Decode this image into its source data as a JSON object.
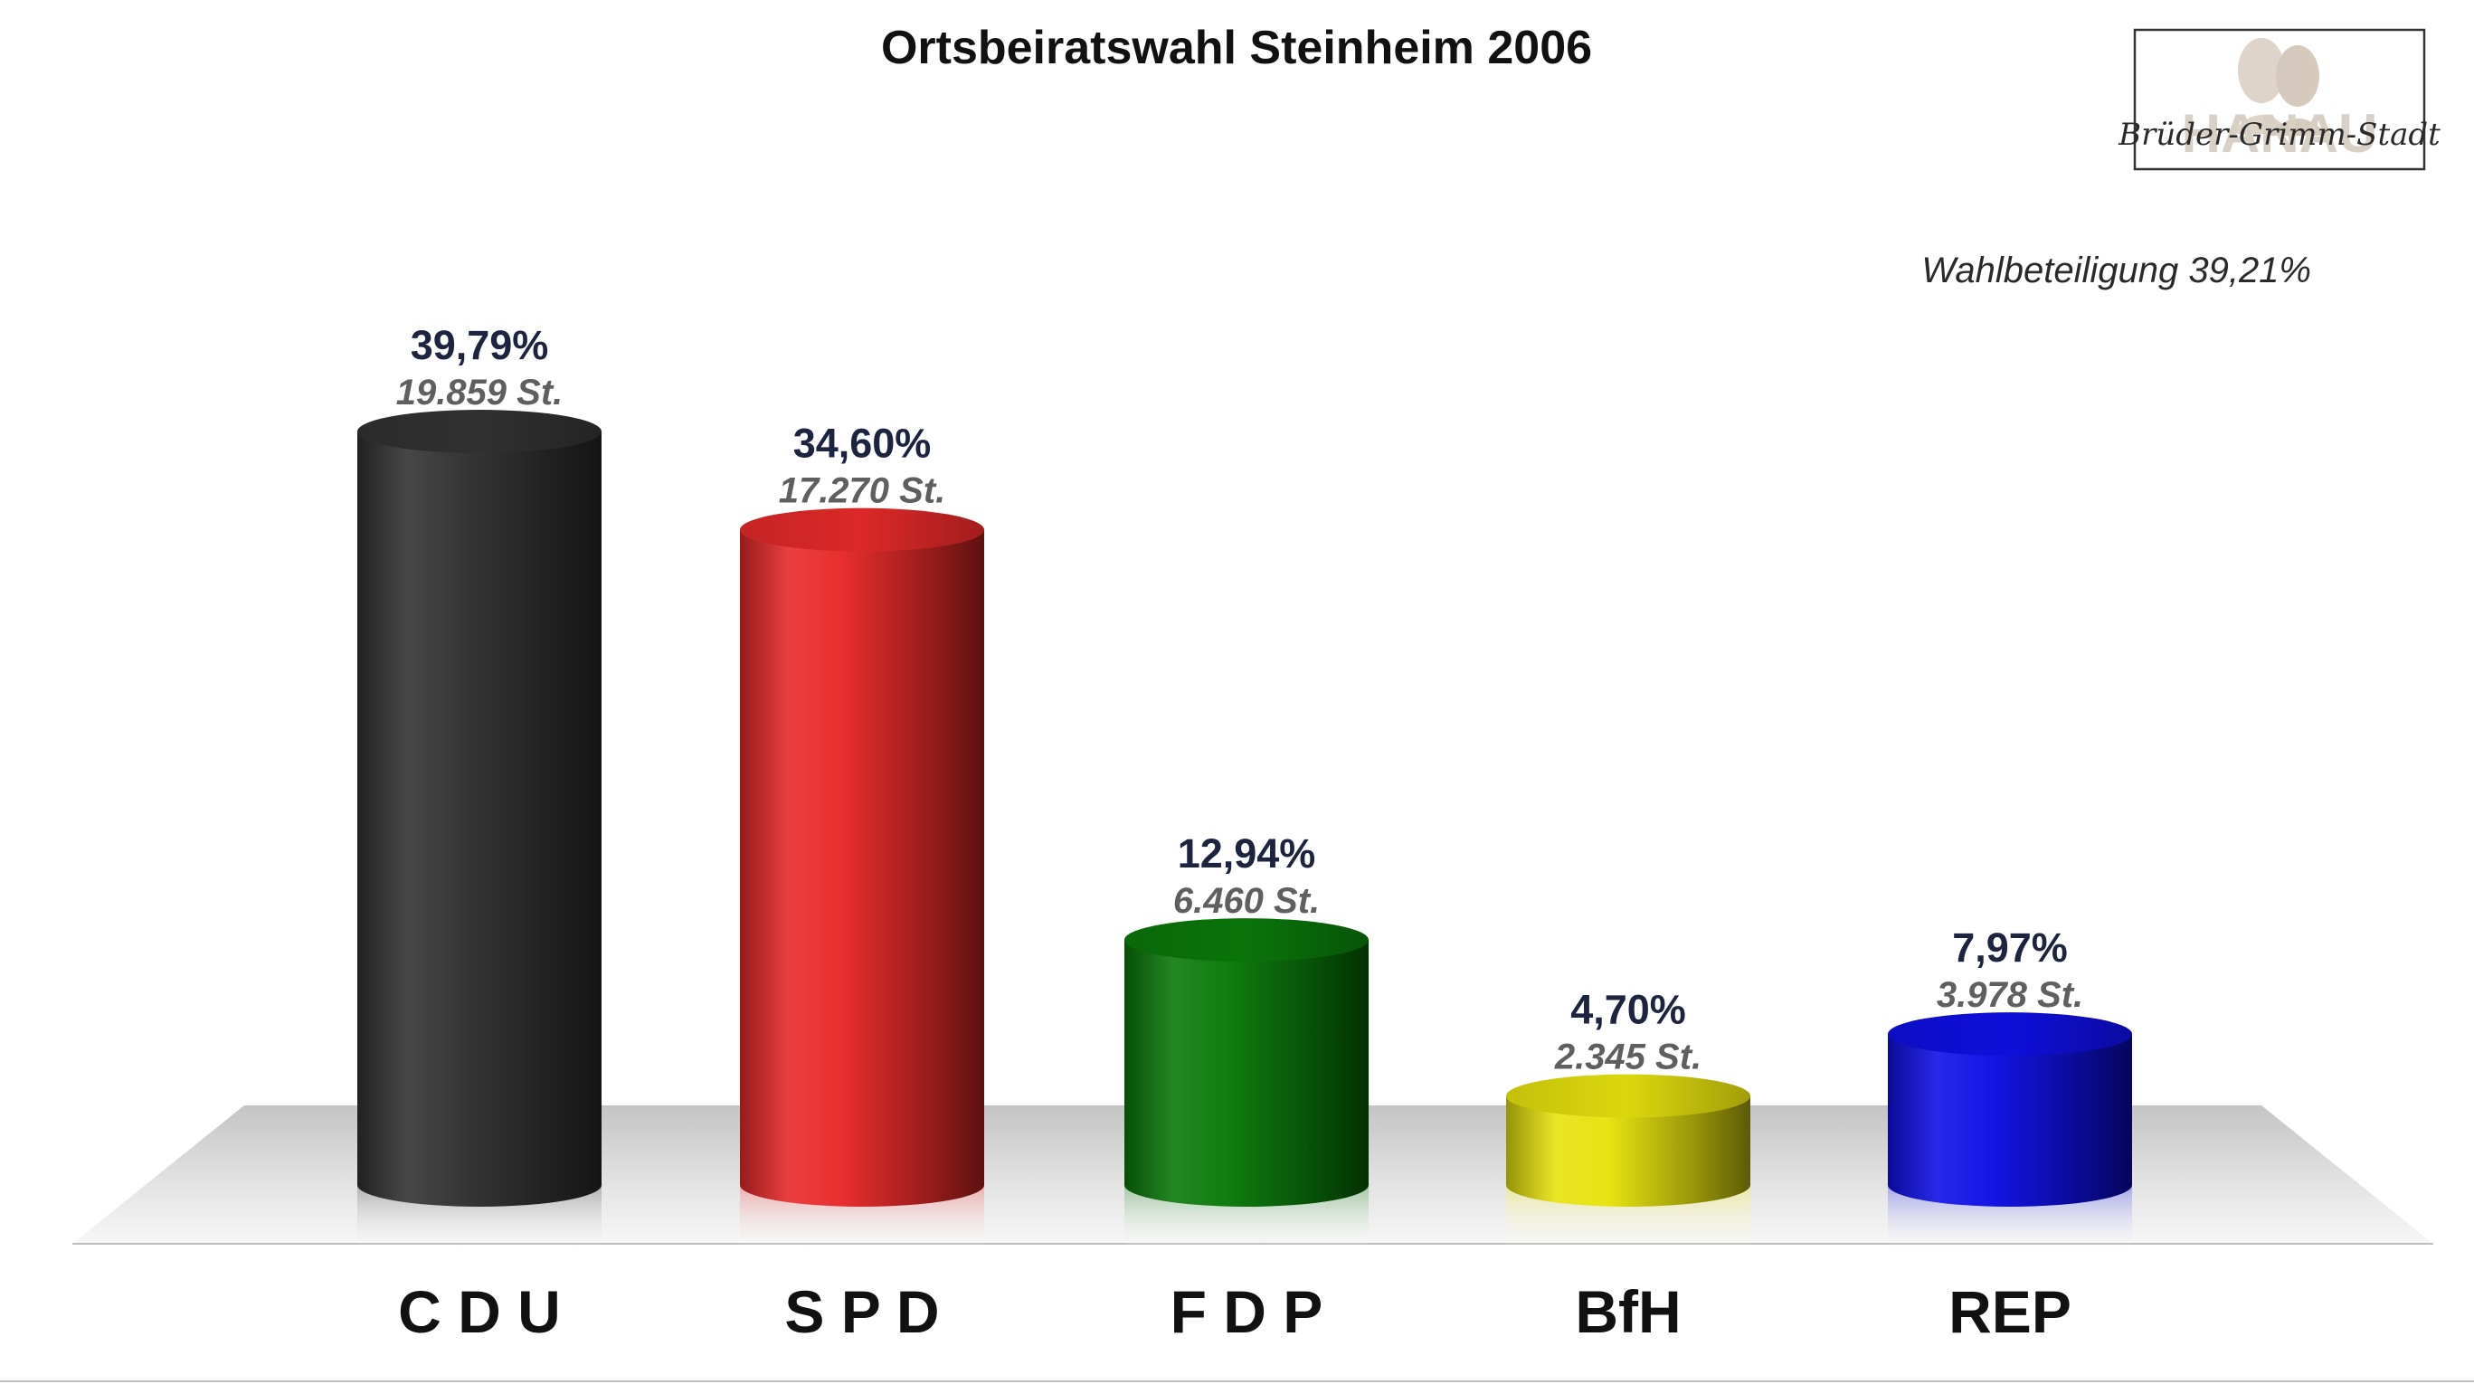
{
  "chart_data": {
    "type": "bar",
    "title": "Ortsbeiratswahl Steinheim 2006",
    "annotation": "Wahlbeteiligung 39,21%",
    "categories": [
      "C D U",
      "S P D",
      "F D P",
      "BfH",
      "REP"
    ],
    "values": [
      39.79,
      34.6,
      12.94,
      4.7,
      7.97
    ],
    "value_labels": [
      "39,79%",
      "34,60%",
      "12,94%",
      "4,70%",
      "7,97%"
    ],
    "votes": [
      19859,
      17270,
      6460,
      2345,
      3978
    ],
    "vote_labels": [
      "19.859 St.",
      "17.270 St.",
      "6.460 St.",
      "2.345 St.",
      "3.978 St."
    ],
    "colors": [
      "#333333",
      "#e82a2a",
      "#0a7a0a",
      "#e6e20e",
      "#1010e6"
    ],
    "xlabel": "",
    "ylabel": "",
    "ylim": [
      0,
      40
    ],
    "grid": false,
    "legend": "none",
    "bar_style": "3d-cylinder"
  },
  "logo": {
    "script_text": "Brüder-Grimm-Stadt",
    "watermark_text": "HANAU",
    "icon": "grimm-brothers-portrait-icon"
  }
}
